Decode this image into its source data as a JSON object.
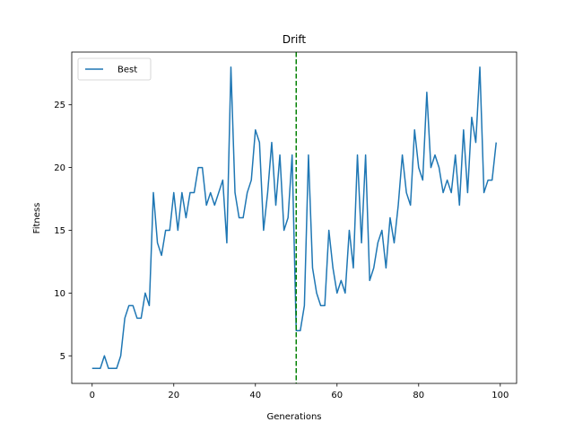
{
  "chart_data": {
    "type": "line",
    "title": "Drift",
    "xlabel": "Generations",
    "ylabel": "Fitness",
    "xlim": [
      -5,
      104
    ],
    "ylim": [
      2.8,
      29.2
    ],
    "xticks": [
      0,
      20,
      40,
      60,
      80,
      100
    ],
    "yticks": [
      5,
      10,
      15,
      20,
      25
    ],
    "grid": false,
    "legend_position": "top-left",
    "colors": {
      "series": "#1f77b4",
      "marker_line": "#008000"
    },
    "series": [
      {
        "name": "Best",
        "x": [
          0,
          1,
          2,
          3,
          4,
          5,
          6,
          7,
          8,
          9,
          10,
          11,
          12,
          13,
          14,
          15,
          16,
          17,
          18,
          19,
          20,
          21,
          22,
          23,
          24,
          25,
          26,
          27,
          28,
          29,
          30,
          31,
          32,
          33,
          34,
          35,
          36,
          37,
          38,
          39,
          40,
          41,
          42,
          43,
          44,
          45,
          46,
          47,
          48,
          49,
          50,
          51,
          52,
          53,
          54,
          55,
          56,
          57,
          58,
          59,
          60,
          61,
          62,
          63,
          64,
          65,
          66,
          67,
          68,
          69,
          70,
          71,
          72,
          73,
          74,
          75,
          76,
          77,
          78,
          79,
          80,
          81,
          82,
          83,
          84,
          85,
          86,
          87,
          88,
          89,
          90,
          91,
          92,
          93,
          94,
          95,
          96,
          97,
          98,
          99
        ],
        "values": [
          4,
          4,
          4,
          5,
          4,
          4,
          4,
          5,
          8,
          9,
          9,
          8,
          8,
          10,
          9,
          18,
          14,
          13,
          15,
          15,
          18,
          15,
          18,
          16,
          18,
          18,
          20,
          20,
          17,
          18,
          17,
          18,
          19,
          14,
          28,
          18,
          16,
          16,
          18,
          19,
          23,
          22,
          15,
          18,
          22,
          17,
          21,
          15,
          16,
          21,
          7,
          7,
          9,
          21,
          12,
          10,
          9,
          9,
          15,
          12,
          10,
          11,
          10,
          15,
          12,
          21,
          14,
          21,
          11,
          12,
          14,
          15,
          12,
          16,
          14,
          17,
          21,
          18,
          17,
          23,
          20,
          19,
          26,
          20,
          21,
          20,
          18,
          19,
          18,
          21,
          17,
          23,
          18,
          24,
          22,
          28,
          18,
          19,
          19,
          22
        ]
      }
    ],
    "annotations": [
      {
        "type": "vline",
        "x": 50,
        "style": "dashed"
      }
    ]
  }
}
